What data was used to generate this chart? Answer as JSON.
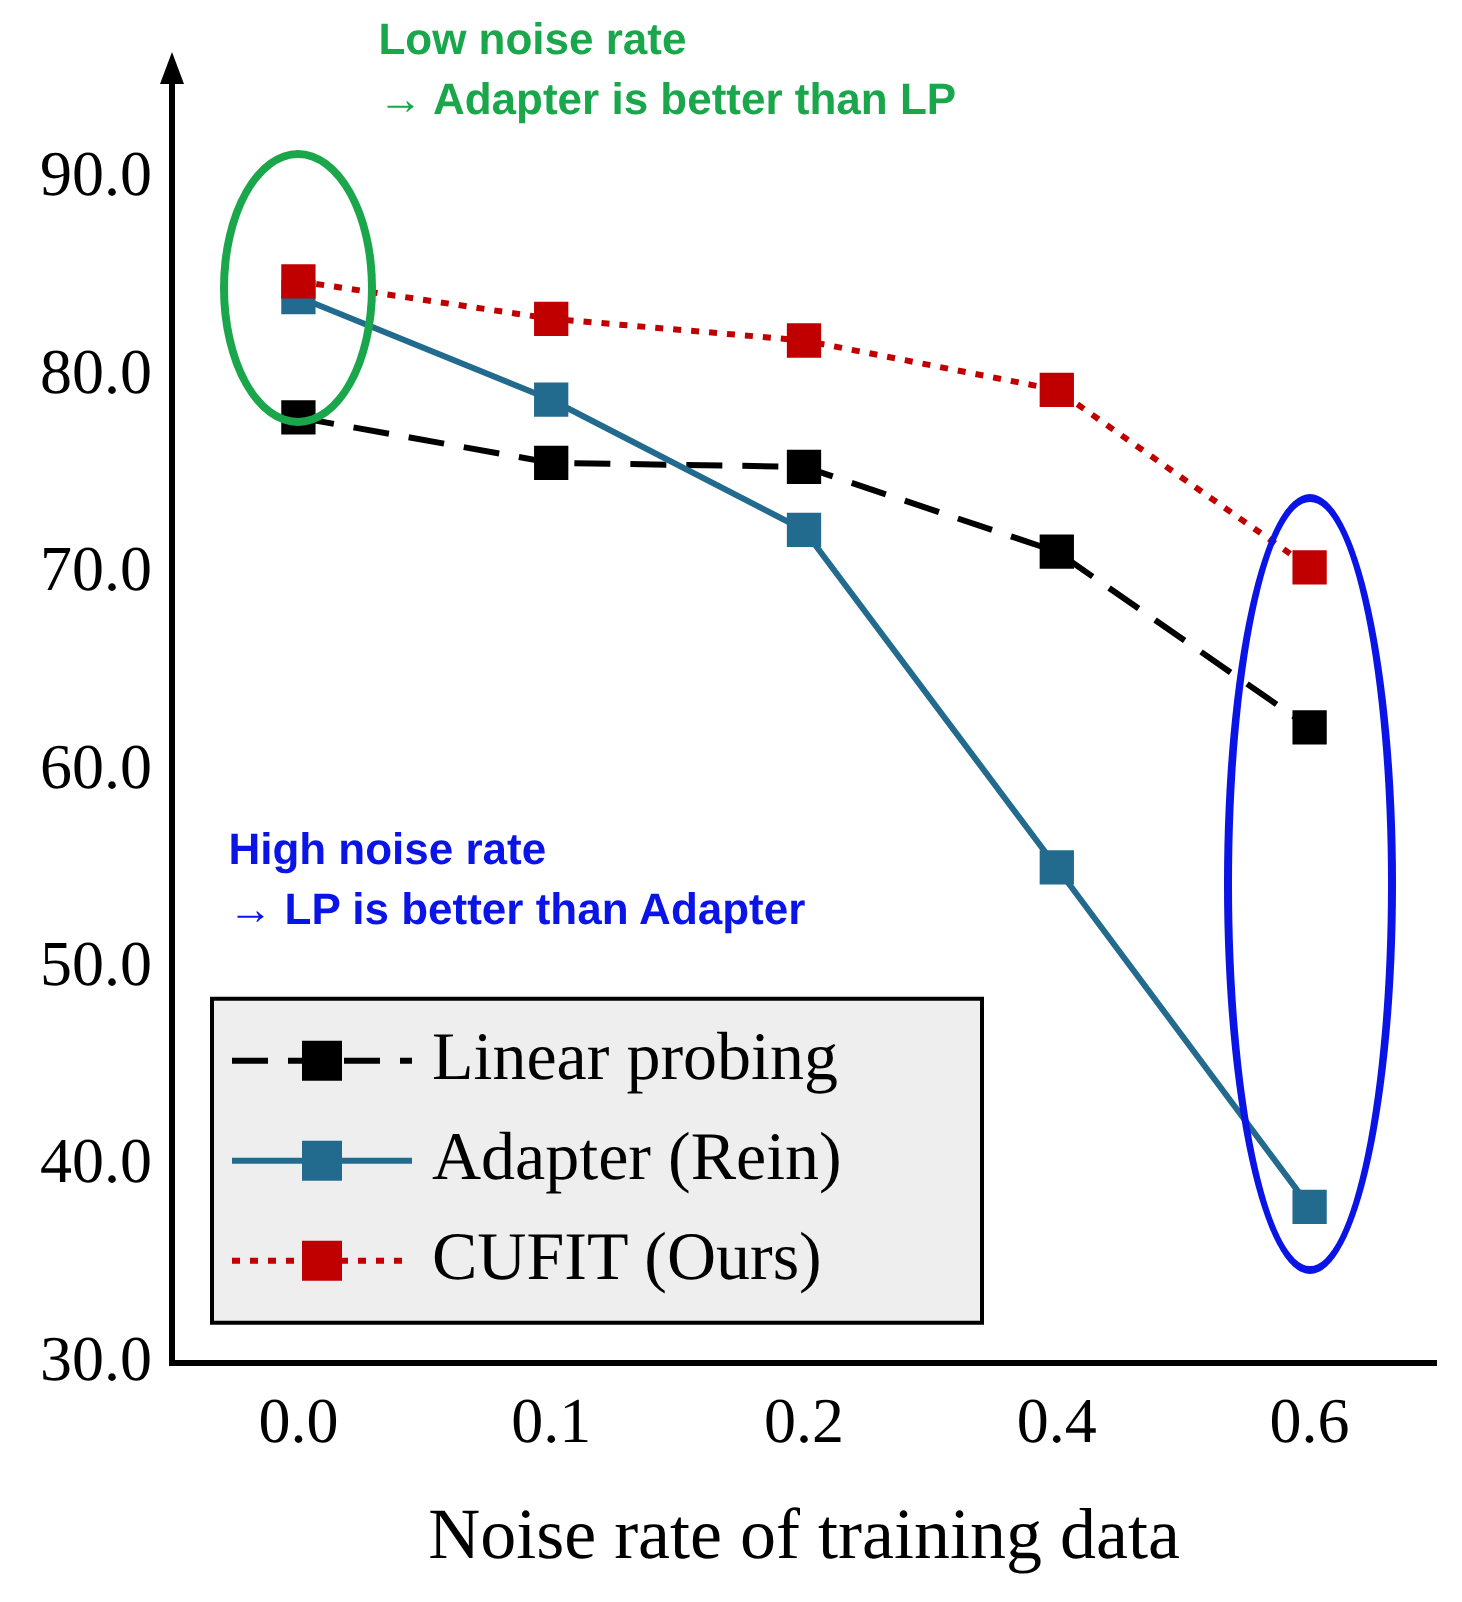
{
  "chart_data": {
    "type": "line",
    "xlabel": "Noise rate of training data",
    "categories": [
      "0.0",
      "0.1",
      "0.2",
      "0.4",
      "0.6"
    ],
    "series": [
      {
        "name": "Linear probing",
        "color": "#000000",
        "line_style": "dashed",
        "values": [
          77.9,
          75.6,
          75.4,
          71.1,
          62.2
        ]
      },
      {
        "name": "Adapter (Rein)",
        "color": "#236b8e",
        "line_style": "solid",
        "values": [
          84.0,
          78.8,
          72.2,
          55.1,
          37.9
        ]
      },
      {
        "name": "CUFIT (Ours)",
        "color": "#c00000",
        "line_style": "dotted",
        "values": [
          84.8,
          82.9,
          81.8,
          79.3,
          70.3
        ]
      }
    ],
    "ylim": [
      30,
      95
    ],
    "yticks": [
      {
        "value": 30,
        "label": "30.0"
      },
      {
        "value": 40,
        "label": "40.0"
      },
      {
        "value": 50,
        "label": "50.0"
      },
      {
        "value": 60,
        "label": "60.0"
      },
      {
        "value": 70,
        "label": "70.0"
      },
      {
        "value": 80,
        "label": "80.0"
      },
      {
        "value": 90,
        "label": "90.0"
      }
    ],
    "marker": "square",
    "grid": false,
    "legend": "bottom left",
    "annotations": [
      "Low noise rate\n→ Adapter is better than LP",
      "High noise rate\n→ LP is better than Adapter"
    ]
  }
}
